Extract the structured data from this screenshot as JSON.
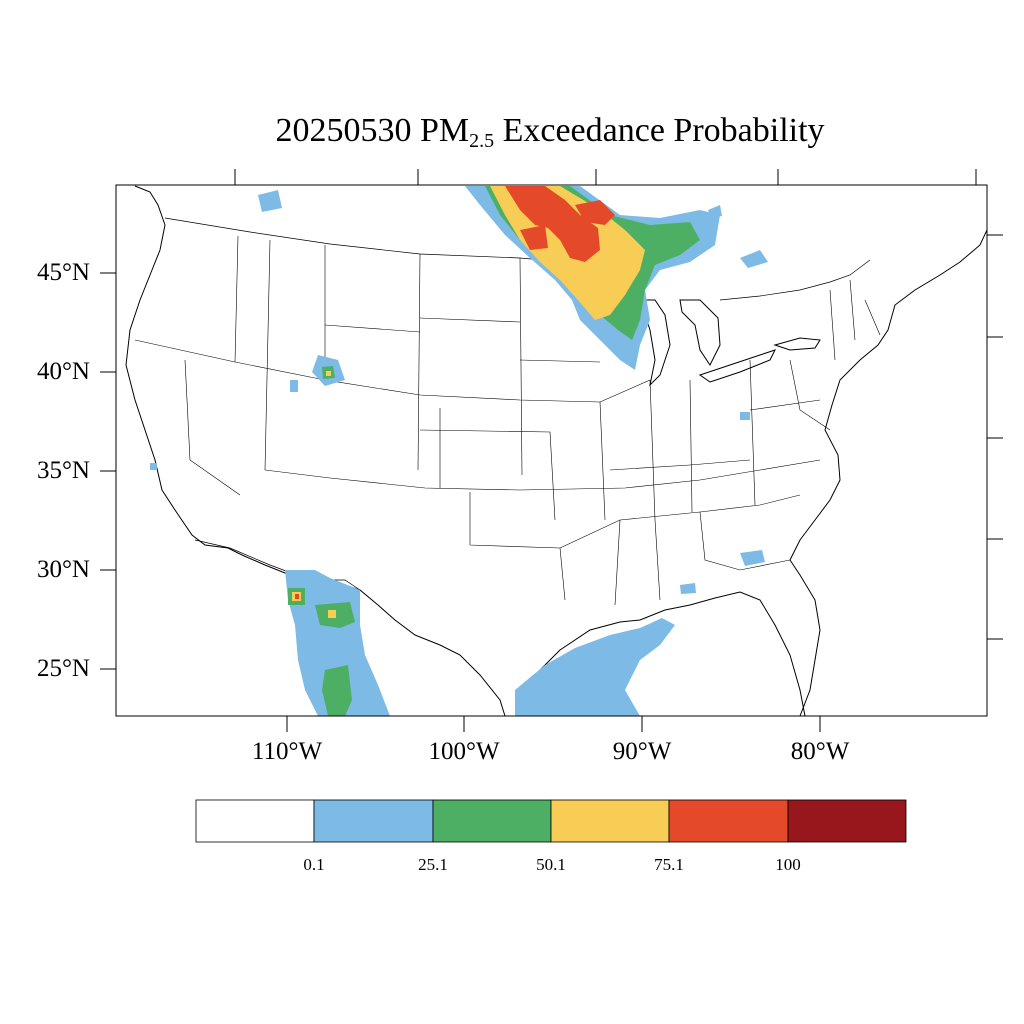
{
  "title": {
    "prefix": "20250530 PM",
    "subscript": "2.5",
    "suffix": " Exceedance Probability"
  },
  "axes": {
    "lat_labels": [
      "45°N",
      "40°N",
      "35°N",
      "30°N",
      "25°N"
    ],
    "lon_labels": [
      "110°W",
      "100°W",
      "90°W",
      "80°W"
    ]
  },
  "colorbar": {
    "colors": [
      "#ffffff",
      "#7dbbe6",
      "#4caf64",
      "#f8cd55",
      "#e44a2a",
      "#98171c"
    ],
    "labels": [
      "0.1",
      "25.1",
      "50.1",
      "75.1",
      "100"
    ]
  },
  "colors": {
    "border": "#000000",
    "state_lines": "#000000",
    "band_0_1": "#7dbbe6",
    "band_25_1": "#4caf64",
    "band_50_1": "#f8cd55",
    "band_75_1": "#e44a2a",
    "band_100": "#98171c"
  }
}
